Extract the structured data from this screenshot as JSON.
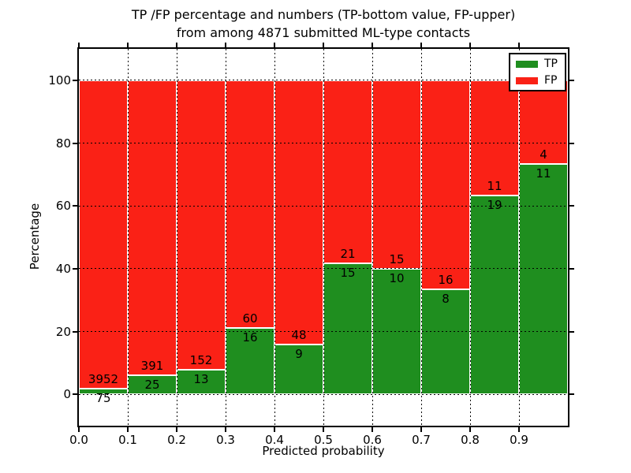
{
  "chart_data": {
    "type": "bar",
    "stacked": true,
    "normalized": "each bin stacks to 100%",
    "title_line1": "TP /FP percentage and numbers (TP-bottom value, FP-upper)",
    "title_line2": "from among 4871 submitted ML-type contacts",
    "total_submitted": 4871,
    "xlabel": "Predicted probability",
    "ylabel": "Percentage",
    "bin_starts": [
      0.0,
      0.1,
      0.2,
      0.3,
      0.4,
      0.5,
      0.6,
      0.7,
      0.8,
      0.9
    ],
    "bin_width": 0.1,
    "series": [
      {
        "name": "TP",
        "color": "#1f8e1f",
        "counts": [
          75,
          25,
          13,
          16,
          9,
          15,
          10,
          8,
          19,
          11
        ]
      },
      {
        "name": "FP",
        "color": "#fa2116",
        "counts": [
          3952,
          391,
          152,
          60,
          48,
          21,
          15,
          16,
          11,
          4
        ]
      }
    ],
    "tp_percent_of_bin": [
      1.9,
      6.0,
      7.9,
      21.1,
      15.8,
      41.7,
      40.0,
      33.3,
      63.3,
      73.3
    ],
    "xticks": [
      "0.0",
      "0.1",
      "0.2",
      "0.3",
      "0.4",
      "0.5",
      "0.6",
      "0.7",
      "0.8",
      "0.9"
    ],
    "yticks": [
      "0",
      "20",
      "40",
      "60",
      "80",
      "100"
    ],
    "ytick_values": [
      0,
      20,
      40,
      60,
      80,
      100
    ],
    "xlim": [
      0.0,
      1.0
    ],
    "ylim": [
      -10,
      110
    ],
    "grid": true,
    "grid_style": "dotted",
    "legend": {
      "position": "upper right",
      "entries": [
        {
          "label": "TP",
          "color": "#1f8e1f"
        },
        {
          "label": "FP",
          "color": "#fa2116"
        }
      ]
    }
  }
}
